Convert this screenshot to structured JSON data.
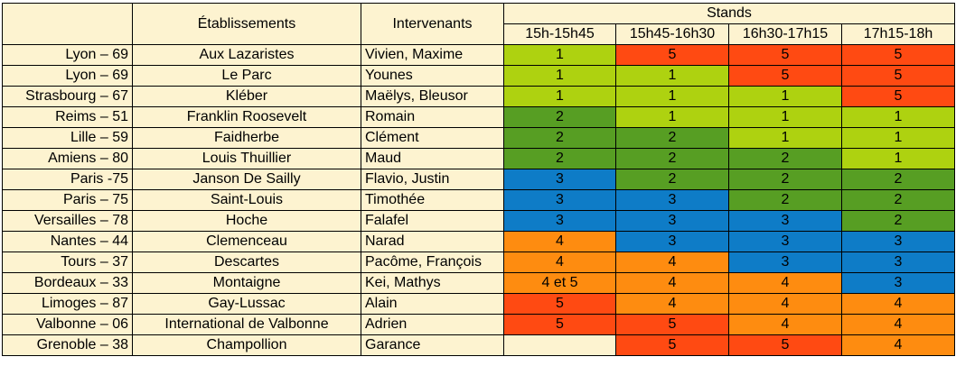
{
  "headers": {
    "etablissements": "Établissements",
    "intervenants": "Intervenants",
    "stands": "Stands",
    "slots": [
      "15h-15h45",
      "15h45-16h30",
      "16h30-17h15",
      "17h15-18h"
    ]
  },
  "colors": {
    "1": "#aed210",
    "2": "#579e23",
    "3": "#0e7cc7",
    "4": "#fe8c10",
    "5": "#ff4a12",
    "empty": "#fdf3d0",
    "background": "#fdf3d0"
  },
  "rows": [
    {
      "city": "Lyon – 69",
      "etab": "Aux Lazaristes",
      "inter": "Vivien, Maxime",
      "stands": [
        "1",
        "5",
        "5",
        "5"
      ]
    },
    {
      "city": "Lyon – 69",
      "etab": "Le Parc",
      "inter": "Younes",
      "stands": [
        "1",
        "1",
        "5",
        "5"
      ]
    },
    {
      "city": "Strasbourg – 67",
      "etab": "Kléber",
      "inter": "Maëlys, Bleusor",
      "stands": [
        "1",
        "1",
        "1",
        "5"
      ]
    },
    {
      "city": "Reims – 51",
      "etab": "Franklin Roosevelt",
      "inter": "Romain",
      "stands": [
        "2",
        "1",
        "1",
        "1"
      ]
    },
    {
      "city": "Lille – 59",
      "etab": "Faidherbe",
      "inter": "Clément",
      "stands": [
        "2",
        "2",
        "1",
        "1"
      ]
    },
    {
      "city": "Amiens – 80",
      "etab": "Louis Thuillier",
      "inter": "Maud",
      "stands": [
        "2",
        "2",
        "2",
        "1"
      ]
    },
    {
      "city": "Paris -75",
      "etab": "Janson De Sailly",
      "inter": "Flavio, Justin",
      "stands": [
        "3",
        "2",
        "2",
        "2"
      ]
    },
    {
      "city": "Paris – 75",
      "etab": "Saint-Louis",
      "inter": "Timothée",
      "stands": [
        "3",
        "3",
        "2",
        "2"
      ]
    },
    {
      "city": "Versailles – 78",
      "etab": "Hoche",
      "inter": "Falafel",
      "stands": [
        "3",
        "3",
        "3",
        "2"
      ]
    },
    {
      "city": "Nantes – 44",
      "etab": "Clemenceau",
      "inter": "Narad",
      "stands": [
        "4",
        "3",
        "3",
        "3"
      ]
    },
    {
      "city": "Tours – 37",
      "etab": "Descartes",
      "inter": "Pacôme, François",
      "stands": [
        "4",
        "4",
        "3",
        "3"
      ]
    },
    {
      "city": "Bordeaux – 33",
      "etab": "Montaigne",
      "inter": "Kei, Mathys",
      "stands": [
        "4 et 5",
        "4",
        "4",
        "3"
      ]
    },
    {
      "city": "Limoges – 87",
      "etab": "Gay-Lussac",
      "inter": "Alain",
      "stands": [
        "5",
        "4",
        "4",
        "4"
      ]
    },
    {
      "city": "Valbonne – 06",
      "etab": "International de Valbonne",
      "inter": "Adrien",
      "stands": [
        "5",
        "5",
        "4",
        "4"
      ]
    },
    {
      "city": "Grenoble – 38",
      "etab": "Champollion",
      "inter": "Garance",
      "stands": [
        "",
        "5",
        "5",
        "4"
      ]
    }
  ]
}
